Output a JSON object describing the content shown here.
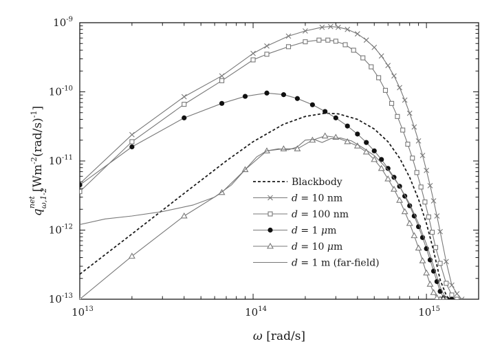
{
  "chart_data": {
    "type": "line",
    "title": "",
    "xlabel": {
      "symbol": "ω",
      "unit": "[rad/s]"
    },
    "ylabel": {
      "symbol": "q",
      "superscript": "net",
      "subscript": "ω,1-2",
      "unit": "[Wm-2(rad/s)-1]",
      "unit_base": "[Wm",
      "unit_exp1": "-2",
      "unit_mid": "(rad/s)",
      "unit_exp2": "-1",
      "unit_end": "]"
    },
    "x_scale": "log",
    "y_scale": "log",
    "xlim": [
      10000000000000.0,
      2000000000000000.0
    ],
    "ylim": [
      1e-13,
      1e-09
    ],
    "x_ticks": [
      {
        "value": 10000000000000.0,
        "base": "10",
        "exp": "13"
      },
      {
        "value": 100000000000000.0,
        "base": "10",
        "exp": "14"
      },
      {
        "value": 1000000000000000.0,
        "base": "10",
        "exp": "15"
      }
    ],
    "y_ticks": [
      {
        "value": 1e-13,
        "base": "10",
        "exp": "-13"
      },
      {
        "value": 1e-12,
        "base": "10",
        "exp": "-12"
      },
      {
        "value": 1e-11,
        "base": "10",
        "exp": "-11"
      },
      {
        "value": 1e-10,
        "base": "10",
        "exp": "-10"
      },
      {
        "value": 1e-09,
        "base": "10",
        "exp": "-9"
      }
    ],
    "grid": false,
    "legend_position": "bottom-right",
    "series": [
      {
        "name": "Blackbody",
        "style": "dashed",
        "marker": "none",
        "color": "#1a1a1a",
        "x": [
          10000000000000.0,
          20000000000000.0,
          40000000000000.0,
          70000000000000.0,
          100000000000000.0,
          150000000000000.0,
          200000000000000.0,
          260000000000000.0,
          310000000000000.0,
          400000000000000.0,
          500000000000000.0,
          600000000000000.0,
          700000000000000.0,
          800000000000000.0,
          900000000000000.0,
          1000000000000000.0,
          1100000000000000.0,
          1200000000000000.0,
          1300000000000000.0,
          1350000000000000.0
        ],
        "y": [
          2.3e-13,
          8.8e-13,
          3.4e-12,
          1e-11,
          1.9e-11,
          3.4e-11,
          4.4e-11,
          4.9e-11,
          4.8e-11,
          4e-11,
          2.9e-11,
          1.9e-11,
          1.1e-11,
          5.8e-12,
          2.8e-12,
          1.25e-12,
          5e-13,
          1.9e-13,
          1.15e-13,
          1e-13
        ]
      },
      {
        "name_parts": [
          "d",
          " = 10 nm"
        ],
        "style": "solid",
        "marker": "x",
        "color": "#777777",
        "x": [
          10000000000000.0,
          20000000000000.0,
          40000000000000.0,
          66000000000000.0,
          100000000000000.0,
          120000000000000.0,
          160000000000000.0,
          200000000000000.0,
          250000000000000.0,
          280000000000000.0,
          310000000000000.0,
          350000000000000.0,
          400000000000000.0,
          450000000000000.0,
          500000000000000.0,
          550000000000000.0,
          600000000000000.0,
          650000000000000.0,
          700000000000000.0,
          750000000000000.0,
          800000000000000.0,
          850000000000000.0,
          900000000000000.0,
          950000000000000.0,
          1000000000000000.0,
          1050000000000000.0,
          1100000000000000.0,
          1150000000000000.0,
          1200000000000000.0,
          1300000000000000.0,
          1400000000000000.0,
          1500000000000000.0,
          1600000000000000.0
        ],
        "y": [
          4.7e-12,
          2.4e-11,
          8.5e-11,
          1.7e-10,
          3.6e-10,
          4.6e-10,
          6.4e-10,
          7.6e-10,
          8.6e-10,
          8.8e-10,
          8.6e-10,
          8e-10,
          6.9e-10,
          5.6e-10,
          4.4e-10,
          3.3e-10,
          2.4e-10,
          1.7e-10,
          1.15e-10,
          7.6e-11,
          4.9e-11,
          3.1e-11,
          1.95e-11,
          1.2e-11,
          7.3e-12,
          4.4e-12,
          2.65e-12,
          1.6e-12,
          9.5e-13,
          3.5e-13,
          1.6e-13,
          1.2e-13,
          1e-13
        ]
      },
      {
        "name_parts": [
          "d",
          " = 100 nm"
        ],
        "style": "solid",
        "marker": "square",
        "color": "#777777",
        "x": [
          10000000000000.0,
          20000000000000.0,
          40000000000000.0,
          66000000000000.0,
          100000000000000.0,
          120000000000000.0,
          160000000000000.0,
          200000000000000.0,
          240000000000000.0,
          270000000000000.0,
          300000000000000.0,
          340000000000000.0,
          380000000000000.0,
          430000000000000.0,
          480000000000000.0,
          530000000000000.0,
          580000000000000.0,
          630000000000000.0,
          680000000000000.0,
          730000000000000.0,
          780000000000000.0,
          830000000000000.0,
          880000000000000.0,
          930000000000000.0,
          980000000000000.0,
          1030000000000000.0,
          1080000000000000.0,
          1130000000000000.0,
          1200000000000000.0,
          1300000000000000.0,
          1400000000000000.0,
          1500000000000000.0
        ],
        "y": [
          3.6e-12,
          1.9e-11,
          6.6e-11,
          1.45e-10,
          2.9e-10,
          3.5e-10,
          4.5e-10,
          5.3e-10,
          5.6e-10,
          5.6e-10,
          5.4e-10,
          4.8e-10,
          4e-10,
          3.1e-10,
          2.3e-10,
          1.6e-10,
          1.05e-10,
          6.8e-11,
          4.4e-11,
          2.8e-11,
          1.75e-11,
          1.1e-11,
          6.8e-12,
          4.2e-12,
          2.55e-12,
          1.55e-12,
          9.3e-13,
          5.6e-13,
          3.3e-13,
          1.7e-13,
          1.15e-13,
          1e-13
        ]
      },
      {
        "name_parts": [
          "d",
          " = 1 ",
          "μ",
          "m"
        ],
        "style": "solid",
        "marker": "filled-circle",
        "color": "#777777",
        "x": [
          10000000000000.0,
          20000000000000.0,
          40000000000000.0,
          66000000000000.0,
          90000000000000.0,
          120000000000000.0,
          150000000000000.0,
          180000000000000.0,
          220000000000000.0,
          260000000000000.0,
          300000000000000.0,
          350000000000000.0,
          400000000000000.0,
          450000000000000.0,
          500000000000000.0,
          550000000000000.0,
          600000000000000.0,
          650000000000000.0,
          700000000000000.0,
          750000000000000.0,
          800000000000000.0,
          850000000000000.0,
          900000000000000.0,
          950000000000000.0,
          1000000000000000.0,
          1050000000000000.0,
          1100000000000000.0,
          1150000000000000.0,
          1200000000000000.0,
          1260000000000000.0,
          1320000000000000.0,
          1400000000000000.0
        ],
        "y": [
          4.5e-12,
          1.6e-11,
          4.2e-11,
          6.8e-11,
          8.6e-11,
          9.6e-11,
          9.1e-11,
          8e-11,
          6.5e-11,
          5.2e-11,
          4.2e-11,
          3.2e-11,
          2.45e-11,
          1.85e-11,
          1.4e-11,
          1.05e-11,
          7.8e-12,
          5.8e-12,
          4.3e-12,
          3.1e-12,
          2.25e-12,
          1.6e-12,
          1.12e-12,
          7.8e-13,
          5.4e-13,
          3.7e-13,
          2.55e-13,
          1.8e-13,
          1.3e-13,
          1.05e-13,
          1e-13,
          1e-13
        ]
      },
      {
        "name_parts": [
          "d",
          " = 10 ",
          "μ",
          "m"
        ],
        "style": "solid",
        "marker": "open-triangle",
        "color": "#777777",
        "x": [
          10000000000000.0,
          20000000000000.0,
          40000000000000.0,
          66000000000000.0,
          90000000000000.0,
          120000000000000.0,
          150000000000000.0,
          180000000000000.0,
          220000000000000.0,
          260000000000000.0,
          300000000000000.0,
          350000000000000.0,
          400000000000000.0,
          450000000000000.0,
          500000000000000.0,
          550000000000000.0,
          600000000000000.0,
          650000000000000.0,
          700000000000000.0,
          750000000000000.0,
          800000000000000.0,
          850000000000000.0,
          900000000000000.0,
          950000000000000.0,
          1000000000000000.0,
          1050000000000000.0,
          1100000000000000.0,
          1150000000000000.0,
          1200000000000000.0,
          1250000000000000.0,
          1300000000000000.0
        ],
        "y": [
          1e-13,
          4.2e-13,
          1.6e-12,
          3.5e-12,
          7.5e-12,
          1.4e-11,
          1.5e-11,
          1.5e-11,
          2e-11,
          2.3e-11,
          2.2e-11,
          1.9e-11,
          1.65e-11,
          1.35e-11,
          1.05e-11,
          7.8e-12,
          5.5e-12,
          3.9e-12,
          2.7e-12,
          1.85e-12,
          1.25e-12,
          8.3e-13,
          5.5e-13,
          3.6e-13,
          2.4e-13,
          1.65e-13,
          1.25e-13,
          1.05e-13,
          1e-13,
          1e-13,
          1e-13
        ]
      },
      {
        "name_parts": [
          "d",
          " = 1 m (far-field)"
        ],
        "style": "solid",
        "marker": "none",
        "color": "#777777",
        "x": [
          10000000000000.0,
          14000000000000.0,
          20000000000000.0,
          30000000000000.0,
          45000000000000.0,
          60000000000000.0,
          75000000000000.0,
          90000000000000.0,
          105000000000000.0,
          120000000000000.0,
          140000000000000.0,
          160000000000000.0,
          180000000000000.0,
          200000000000000.0,
          225000000000000.0,
          250000000000000.0,
          280000000000000.0,
          320000000000000.0,
          370000000000000.0,
          430000000000000.0,
          500000000000000.0,
          600000000000000.0,
          700000000000000.0,
          800000000000000.0,
          900000000000000.0,
          1000000000000000.0,
          1100000000000000.0,
          1200000000000000.0,
          1300000000000000.0
        ],
        "y": [
          1.2e-12,
          1.45e-12,
          1.6e-12,
          1.85e-12,
          2.3e-12,
          3e-12,
          4.5e-12,
          7.5e-12,
          1.15e-11,
          1.4e-11,
          1.5e-11,
          1.45e-11,
          1.6e-11,
          2e-11,
          2.05e-11,
          1.85e-11,
          2.1e-11,
          2.15e-11,
          1.95e-11,
          1.55e-11,
          1.2e-11,
          7.5e-12,
          4.3e-12,
          2.4e-12,
          1.25e-12,
          6.3e-13,
          3e-13,
          1.5e-13,
          1e-13
        ]
      }
    ]
  }
}
